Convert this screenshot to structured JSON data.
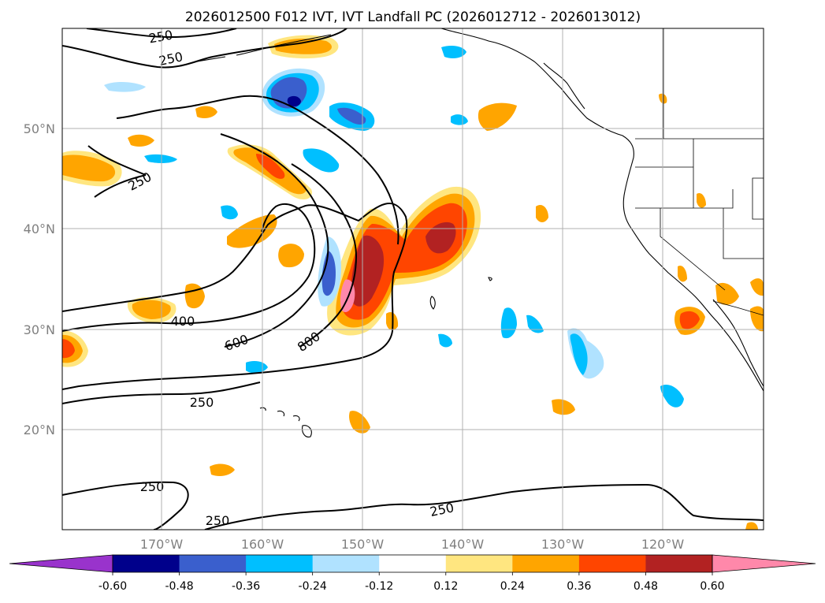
{
  "title": "2026012500 F012 IVT, IVT Landfall PC (2026012712 - 2026013012)",
  "lat_labels": [
    "50°N",
    "40°N",
    "30°N",
    "20°N"
  ],
  "lon_labels": [
    "170°W",
    "160°W",
    "150°W",
    "140°W",
    "130°W",
    "120°W"
  ],
  "contour_labels": [
    "250",
    "250",
    "250",
    "400",
    "600",
    "800",
    "250",
    "250",
    "250",
    "250"
  ],
  "colorbar": {
    "tick_labels": [
      "-0.60",
      "-0.48",
      "-0.36",
      "-0.24",
      "-0.12",
      "0.12",
      "0.24",
      "0.36",
      "0.48",
      "0.60"
    ],
    "colors": [
      "#9933cc",
      "#00008b",
      "#3a5fcd",
      "#00bfff",
      "#b0e2ff",
      "#ffffff",
      "#ffe680",
      "#ffa500",
      "#ff4500",
      "#b22222",
      "#ff88aa"
    ],
    "extend": "both"
  },
  "colors": {
    "contour": "#000000",
    "grid": "#b0b0b0",
    "coast": "#000000",
    "label_gray": "#808080"
  }
}
